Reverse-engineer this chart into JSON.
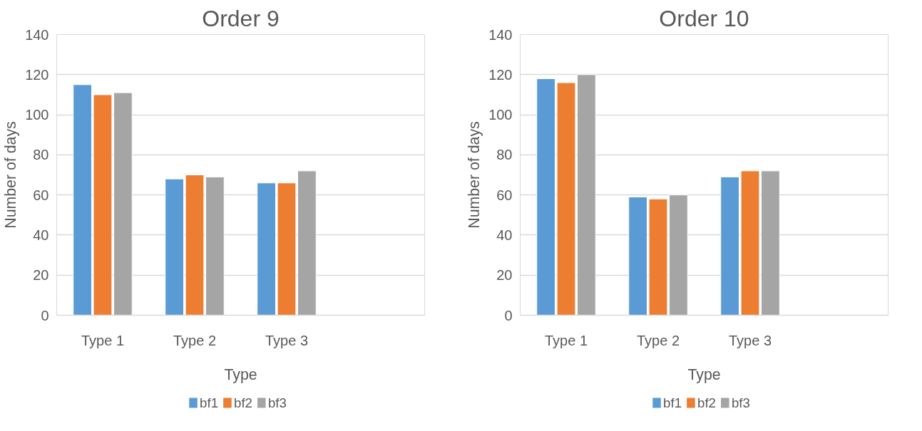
{
  "chart_data": [
    {
      "type": "bar",
      "title": "Order 9",
      "xlabel": "Type",
      "ylabel": "Number of days",
      "categories": [
        "Type 1",
        "Type 2",
        "Type 3",
        null
      ],
      "series": [
        {
          "name": "bf1",
          "color": "#5b9bd5",
          "values": [
            115,
            68,
            66,
            null
          ]
        },
        {
          "name": "bf2",
          "color": "#ed7d31",
          "values": [
            110,
            70,
            66,
            null
          ]
        },
        {
          "name": "bf3",
          "color": "#a5a5a5",
          "values": [
            111,
            69,
            72,
            null
          ]
        }
      ],
      "ylim": [
        0,
        140
      ],
      "yticks": [
        0,
        20,
        40,
        60,
        80,
        100,
        120,
        140
      ],
      "grid": "y",
      "legend": "bottom"
    },
    {
      "type": "bar",
      "title": "Order 10",
      "xlabel": "Type",
      "ylabel": "Number of days",
      "categories": [
        "Type 1",
        "Type 2",
        "Type 3",
        null
      ],
      "series": [
        {
          "name": "bf1",
          "color": "#5b9bd5",
          "values": [
            118,
            59,
            69,
            null
          ]
        },
        {
          "name": "bf2",
          "color": "#ed7d31",
          "values": [
            116,
            58,
            72,
            null
          ]
        },
        {
          "name": "bf3",
          "color": "#a5a5a5",
          "values": [
            120,
            60,
            72,
            null
          ]
        }
      ],
      "ylim": [
        0,
        140
      ],
      "yticks": [
        0,
        20,
        40,
        60,
        80,
        100,
        120,
        140
      ],
      "grid": "y",
      "legend": "bottom"
    }
  ]
}
